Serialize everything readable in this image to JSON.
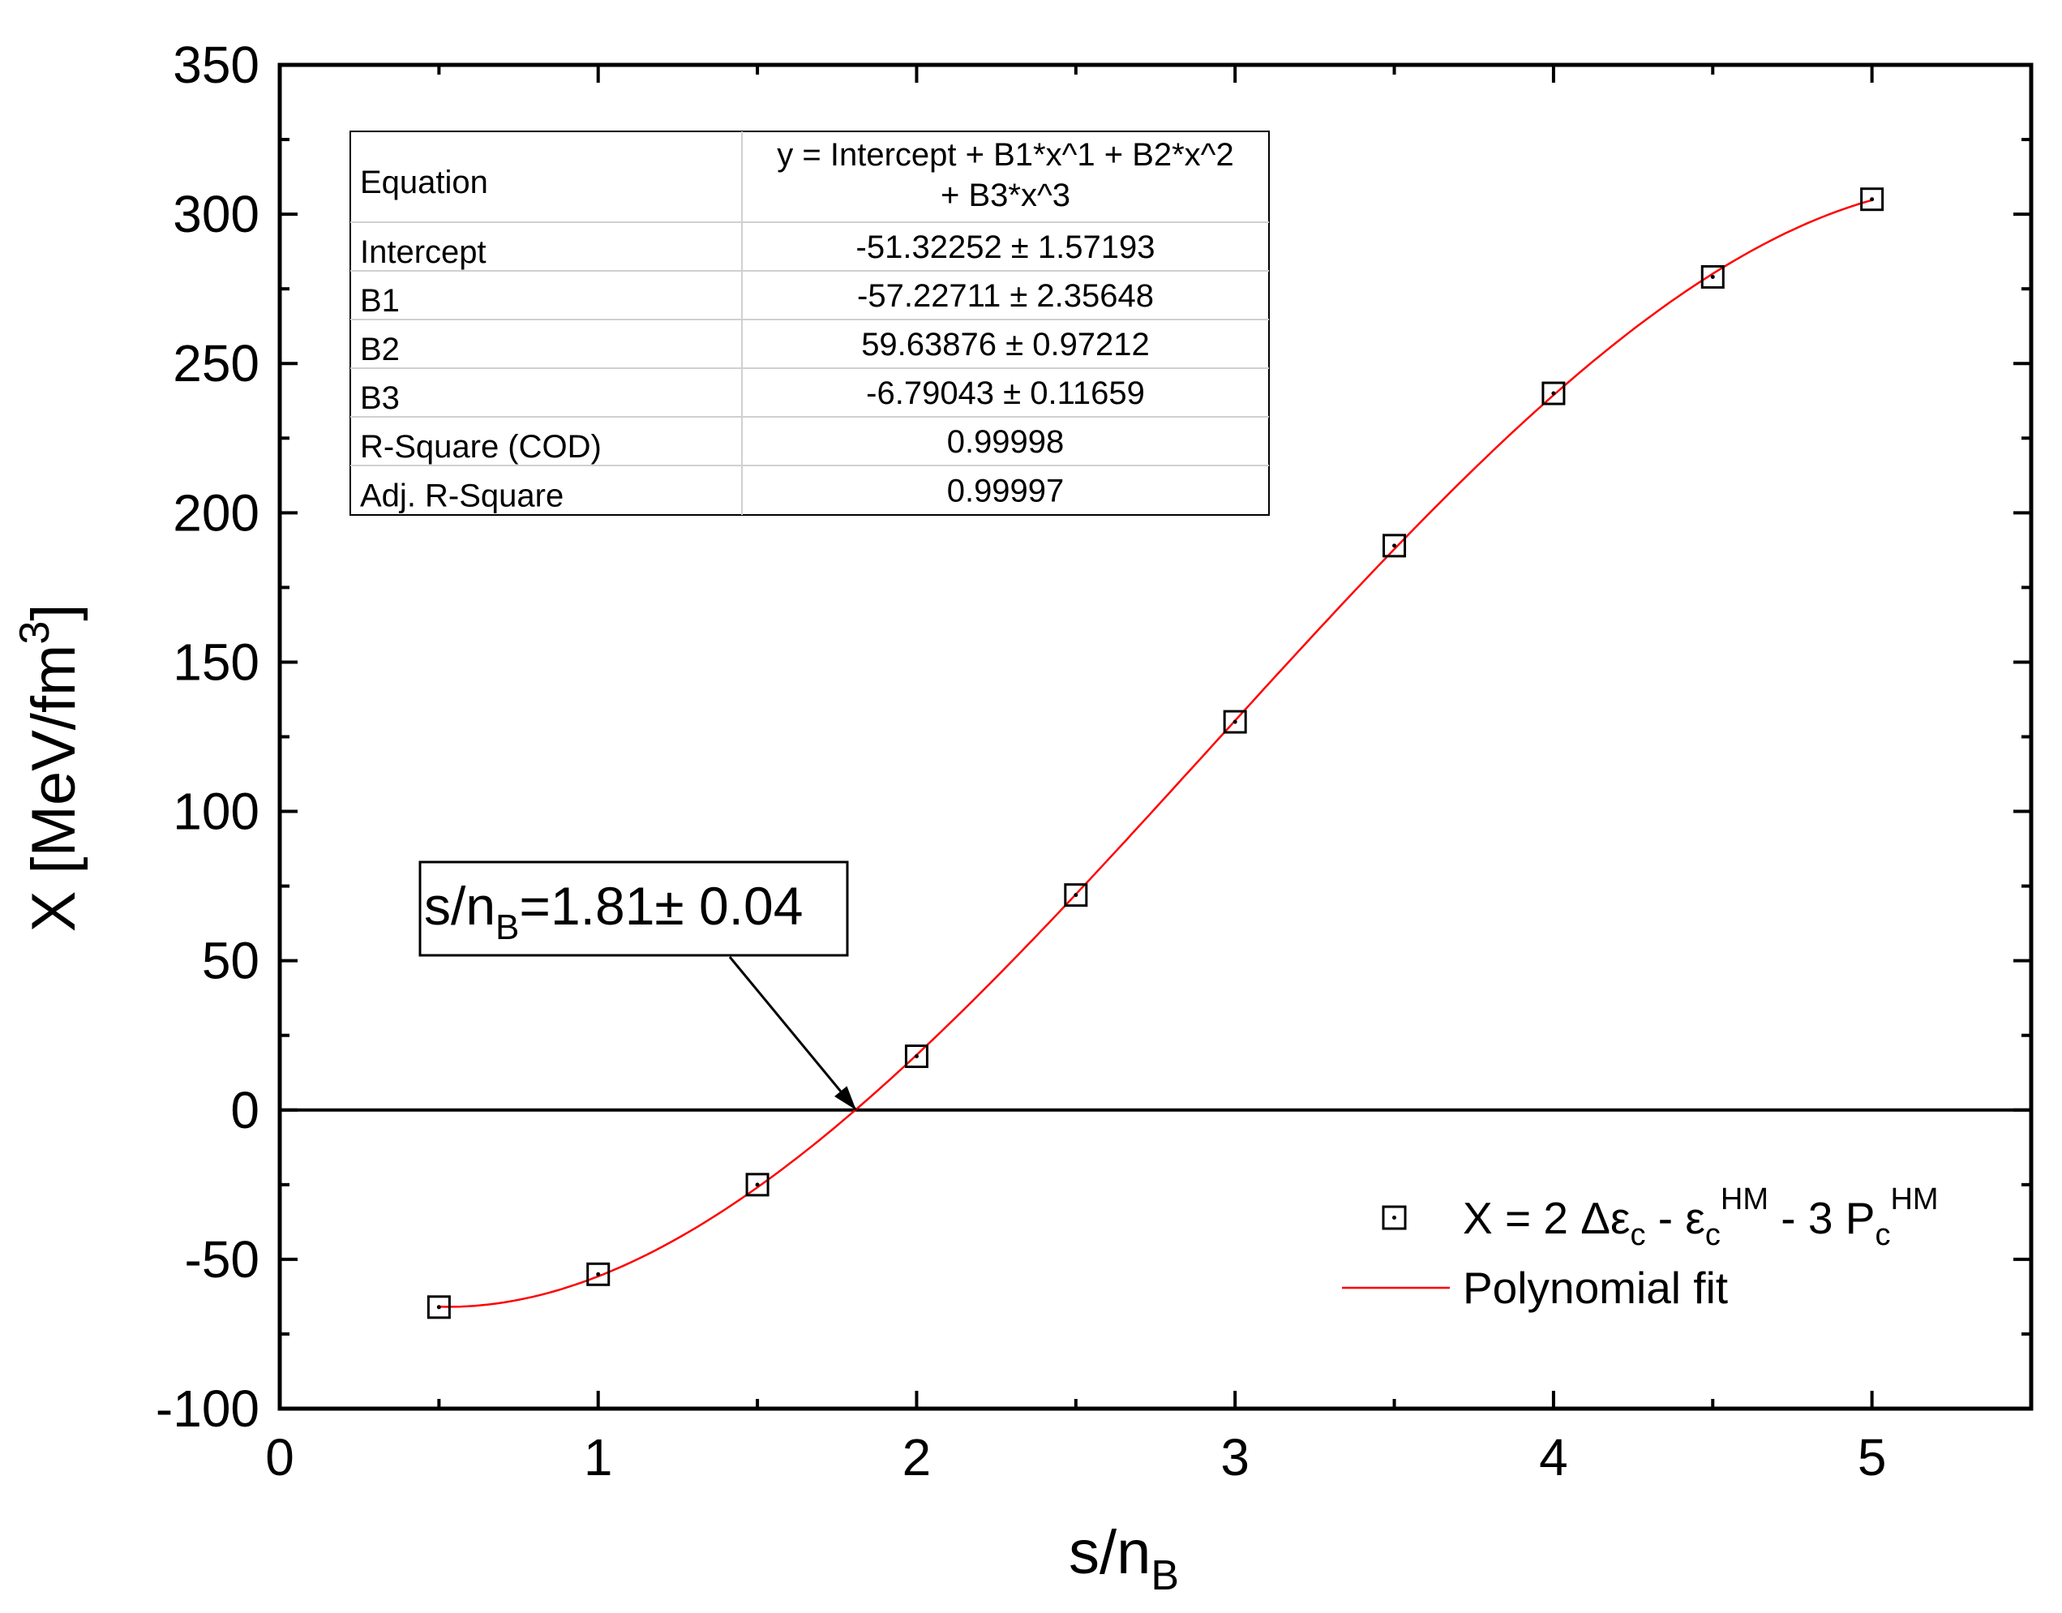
{
  "chart_data": {
    "type": "scatter",
    "xlabel": "s/n",
    "xlabel_sub": "B",
    "ylabel": "X [MeV/fm",
    "ylabel_sup": "3",
    "ylabel_close": "]",
    "xlim": [
      0,
      5.5
    ],
    "ylim": [
      -100,
      350
    ],
    "xticks": [
      0,
      1,
      2,
      3,
      4,
      5
    ],
    "yticks": [
      -100,
      -50,
      0,
      50,
      100,
      150,
      200,
      250,
      300,
      350
    ],
    "grid": false,
    "legend_position": "bottom-right",
    "series": [
      {
        "name": "X = 2 Δε_c - ε_c^HM - 3 P_c^HM",
        "kind": "scatter",
        "marker": "open-square",
        "color": "#000000",
        "x": [
          0.5,
          1.0,
          1.5,
          2.0,
          2.5,
          3.0,
          3.5,
          4.0,
          4.5,
          5.0
        ],
        "y": [
          -66,
          -55,
          -25,
          18,
          72,
          130,
          189,
          240,
          279,
          305
        ]
      },
      {
        "name": "Polynomial fit",
        "kind": "line",
        "color": "#ff0000",
        "coefficients": [
          -51.32252,
          -57.22711,
          59.63876,
          -6.79043
        ],
        "x_range": [
          0.5,
          5.0
        ]
      }
    ],
    "zero_line_y": 0,
    "annotation": {
      "text_main": "s/n",
      "text_sub": "B",
      "text_rest": "=1.81± 0.04",
      "arrow_target": [
        1.81,
        0
      ]
    },
    "fit_table": {
      "rows": [
        {
          "label": "Equation",
          "value_line1": "y = Intercept + B1*x^1 + B2*x^2",
          "value_line2": "+ B3*x^3"
        },
        {
          "label": "Intercept",
          "value": "-51.32252 ± 1.57193"
        },
        {
          "label": "B1",
          "value": "-57.22711 ± 2.35648"
        },
        {
          "label": "B2",
          "value": "59.63876 ± 0.97212"
        },
        {
          "label": "B3",
          "value": "-6.79043 ± 0.11659"
        },
        {
          "label": "R-Square (COD)",
          "value": "0.99998"
        },
        {
          "label": "Adj. R-Square",
          "value": "0.99997"
        }
      ]
    },
    "legend": {
      "scatter_label": {
        "p1": "X = 2 ",
        "p2": "Δε",
        "p2_sub": "c",
        "p3": " - ε",
        "p3_sub": "c",
        "p3_sup": "HM",
        "p4": " - 3 P",
        "p4_sub": "c",
        "p4_sup": "HM"
      },
      "line_label": "Polynomial fit"
    }
  }
}
